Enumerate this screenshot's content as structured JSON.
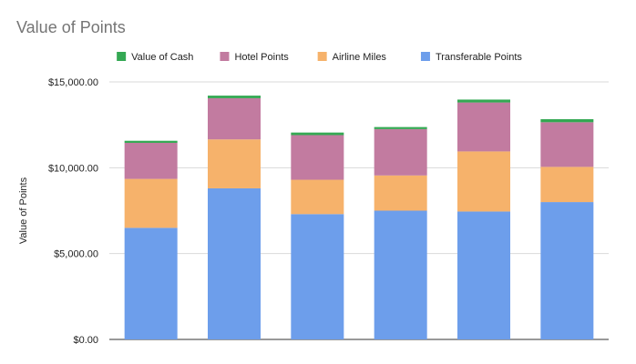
{
  "chart_data": {
    "type": "bar",
    "stacked": true,
    "title": "Value of Points",
    "xlabel": "",
    "ylabel": "Value of Points",
    "categories": [
      "",
      "",
      "",
      "",
      "",
      ""
    ],
    "ylim": [
      0,
      15000
    ],
    "yticks": [
      "$0.00",
      "$5,000.00",
      "$10,000.00",
      "$15,000.00"
    ],
    "grid": true,
    "legend_position": "top",
    "series": [
      {
        "name": "Transferable Points",
        "color": "#6d9eeb",
        "values": [
          6500,
          8800,
          7300,
          7500,
          7450,
          8000
        ]
      },
      {
        "name": "Airline Miles",
        "color": "#f6b26b",
        "values": [
          2850,
          2850,
          2000,
          2050,
          3500,
          2050
        ]
      },
      {
        "name": "Hotel Points",
        "color": "#c27ba0",
        "values": [
          2100,
          2400,
          2600,
          2700,
          2850,
          2600
        ]
      },
      {
        "name": "Value of Cash",
        "color": "#34a853",
        "values": [
          120,
          150,
          150,
          120,
          170,
          180
        ]
      }
    ],
    "legend_order": [
      "Value of Cash",
      "Hotel Points",
      "Airline Miles",
      "Transferable Points"
    ]
  }
}
